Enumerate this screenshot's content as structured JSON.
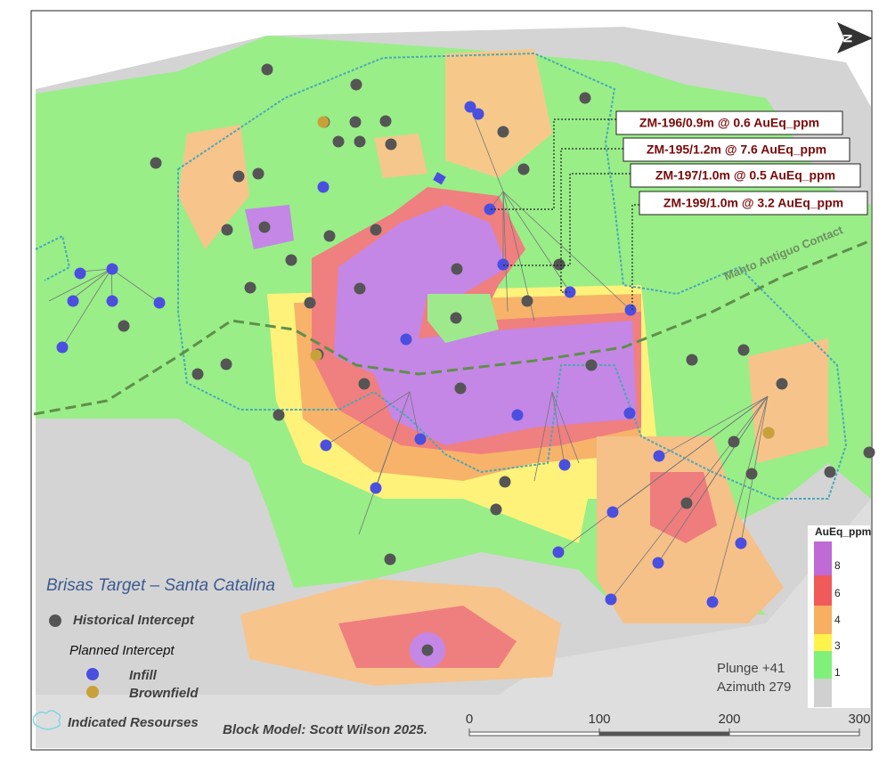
{
  "map": {
    "title": "Brisas Target – Santa Catalina",
    "callouts": [
      "ZM-196/0.9m @ 0.6 AuEq_ppm",
      "ZM-195/1.2m @ 7.6 AuEq_ppm",
      "ZM-197/1.0m @ 0.5 AuEq_ppm",
      "ZM-199/1.0m @ 3.2 AuEq_ppm"
    ],
    "contact_label": "Manto Antiguo Contact",
    "north": "N",
    "legend": {
      "historical": "Historical Intercept",
      "planned": "Planned  Intercept",
      "infill": "Infill",
      "brownfield": "Brownfield",
      "indicated": "Indicated Resourses"
    },
    "credit": "Block Model: Scott Wilson 2025.",
    "view": [
      "Plunge +41",
      "Azimuth 279"
    ],
    "colorbar": {
      "title": "AuEq_ppm",
      "labels": [
        8,
        6,
        4,
        3,
        1
      ]
    },
    "scale_bar": {
      "ticks": [
        0,
        100,
        200,
        300
      ]
    }
  }
}
